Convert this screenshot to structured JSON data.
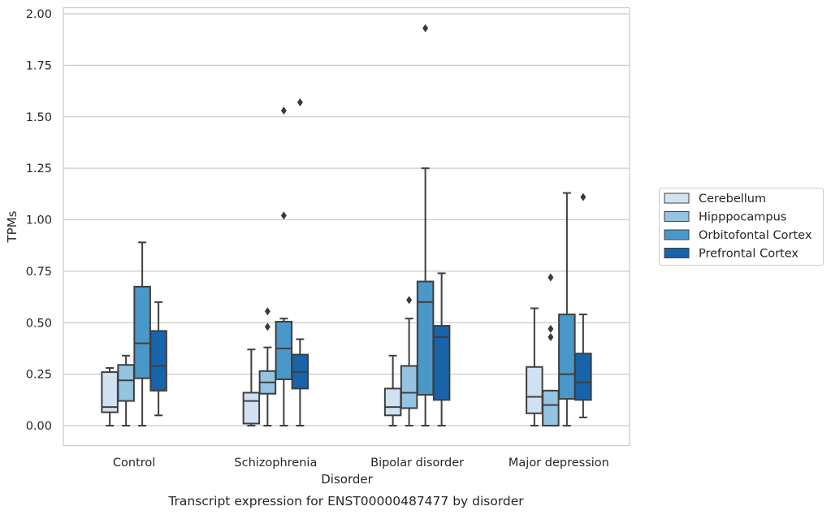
{
  "chart_data": {
    "type": "box",
    "caption": "Transcript expression for ENST00000487477 by disorder",
    "xlabel": "Disorder",
    "ylabel": "TPMs",
    "ylim": [
      -0.1,
      2.02
    ],
    "yticks": [
      0.0,
      0.25,
      0.5,
      0.75,
      1.0,
      1.25,
      1.5,
      1.75,
      2.0
    ],
    "ytick_labels": [
      "0.00",
      "0.25",
      "0.50",
      "0.75",
      "1.00",
      "1.25",
      "1.50",
      "1.75",
      "2.00"
    ],
    "grid": "horizontal",
    "legend_position": "right",
    "categories": [
      "Control",
      "Schizophrenia",
      "Bipolar disorder",
      "Major depression"
    ],
    "series": [
      {
        "name": "Cerebellum",
        "color": "#d0e1f2",
        "boxes": [
          {
            "whisker_low": 0.0,
            "q1": 0.065,
            "median": 0.09,
            "q3": 0.26,
            "whisker_high": 0.28,
            "outliers": []
          },
          {
            "whisker_low": 0.0,
            "q1": 0.01,
            "median": 0.12,
            "q3": 0.16,
            "whisker_high": 0.37,
            "outliers": []
          },
          {
            "whisker_low": 0.0,
            "q1": 0.05,
            "median": 0.09,
            "q3": 0.18,
            "whisker_high": 0.34,
            "outliers": []
          },
          {
            "whisker_low": 0.0,
            "q1": 0.06,
            "median": 0.14,
            "q3": 0.285,
            "whisker_high": 0.57,
            "outliers": []
          }
        ]
      },
      {
        "name": "Hipppocampus",
        "color": "#94c4df",
        "boxes": [
          {
            "whisker_low": 0.0,
            "q1": 0.12,
            "median": 0.22,
            "q3": 0.295,
            "whisker_high": 0.34,
            "outliers": []
          },
          {
            "whisker_low": 0.0,
            "q1": 0.155,
            "median": 0.21,
            "q3": 0.265,
            "whisker_high": 0.38,
            "outliers": [
              0.48,
              0.555
            ]
          },
          {
            "whisker_low": 0.0,
            "q1": 0.085,
            "median": 0.16,
            "q3": 0.29,
            "whisker_high": 0.52,
            "outliers": [
              0.61
            ]
          },
          {
            "whisker_low": 0.0,
            "q1": 0.0,
            "median": 0.1,
            "q3": 0.17,
            "whisker_high": 0.17,
            "outliers": [
              0.43,
              0.47,
              0.72
            ]
          }
        ]
      },
      {
        "name": "Orbitofontal Cortex",
        "color": "#4a98c9",
        "boxes": [
          {
            "whisker_low": 0.0,
            "q1": 0.23,
            "median": 0.4,
            "q3": 0.675,
            "whisker_high": 0.89,
            "outliers": []
          },
          {
            "whisker_low": 0.0,
            "q1": 0.225,
            "median": 0.375,
            "q3": 0.505,
            "whisker_high": 0.52,
            "outliers": [
              1.02,
              1.53
            ]
          },
          {
            "whisker_low": 0.0,
            "q1": 0.15,
            "median": 0.6,
            "q3": 0.7,
            "whisker_high": 1.25,
            "outliers": [
              1.93
            ]
          },
          {
            "whisker_low": 0.0,
            "q1": 0.13,
            "median": 0.25,
            "q3": 0.54,
            "whisker_high": 1.13,
            "outliers": []
          }
        ]
      },
      {
        "name": "Prefrontal Cortex",
        "color": "#1764ab",
        "boxes": [
          {
            "whisker_low": 0.05,
            "q1": 0.17,
            "median": 0.29,
            "q3": 0.46,
            "whisker_high": 0.6,
            "outliers": []
          },
          {
            "whisker_low": 0.0,
            "q1": 0.18,
            "median": 0.26,
            "q3": 0.345,
            "whisker_high": 0.42,
            "outliers": [
              1.57
            ]
          },
          {
            "whisker_low": 0.0,
            "q1": 0.125,
            "median": 0.43,
            "q3": 0.485,
            "whisker_high": 0.74,
            "outliers": []
          },
          {
            "whisker_low": 0.04,
            "q1": 0.125,
            "median": 0.21,
            "q3": 0.35,
            "whisker_high": 0.54,
            "outliers": [
              1.11
            ]
          }
        ]
      }
    ]
  }
}
